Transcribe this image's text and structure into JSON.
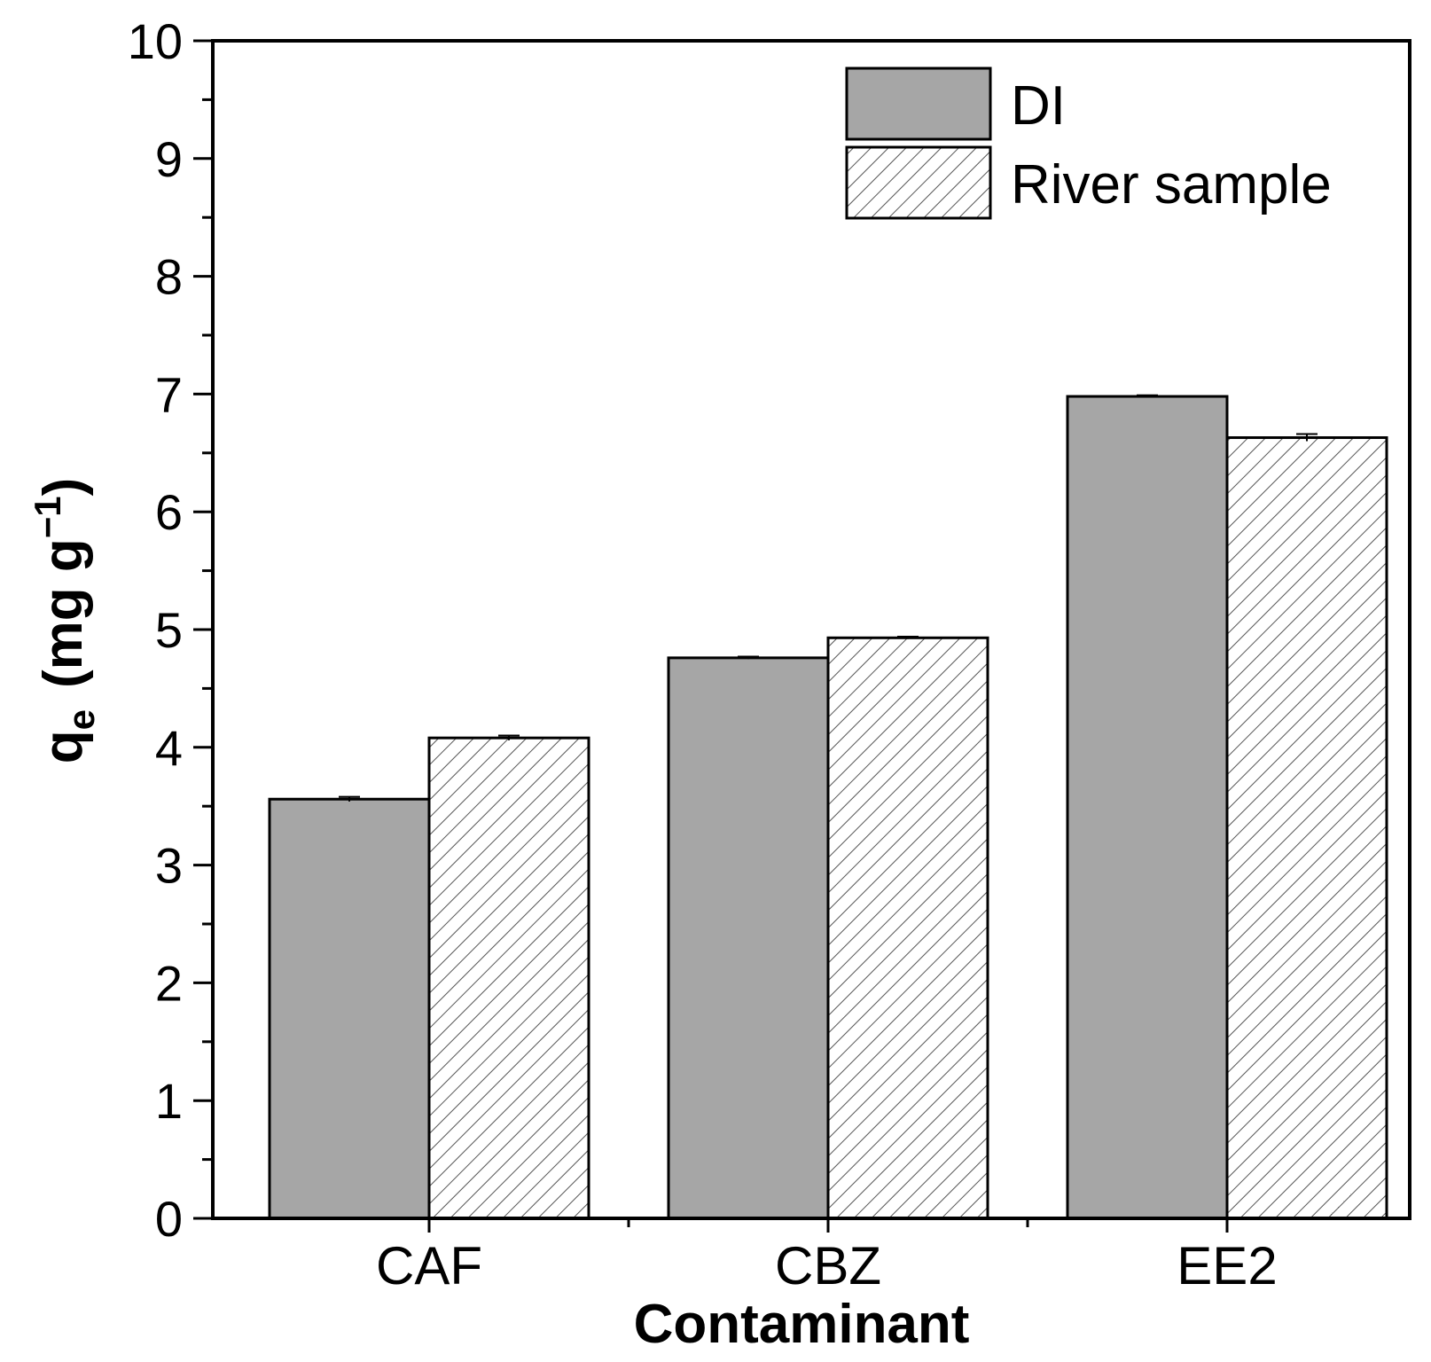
{
  "chart_data": {
    "type": "bar",
    "title": "",
    "xlabel": "Contaminant",
    "ylabel_main": "q",
    "ylabel_sub": "e",
    "ylabel_units_pre": "(mg g",
    "ylabel_units_sup": "−1",
    "ylabel_units_post": ")",
    "categories": [
      "CAF",
      "CBZ",
      "EE2"
    ],
    "ylim": [
      0,
      10
    ],
    "yticks": [
      "0",
      "1",
      "2",
      "3",
      "4",
      "5",
      "6",
      "7",
      "8",
      "9",
      "10"
    ],
    "legend_position": "top-right",
    "series": [
      {
        "name": "DI",
        "pattern": "solid",
        "values": [
          3.56,
          4.76,
          6.98
        ],
        "errors": [
          0.02,
          0.01,
          0.01
        ]
      },
      {
        "name": "River sample",
        "pattern": "hatch",
        "values": [
          4.08,
          4.93,
          6.63
        ],
        "errors": [
          0.02,
          0.01,
          0.03
        ]
      }
    ],
    "colors": {
      "di_fill": "#a6a6a6",
      "hatch_line": "#555555",
      "axis": "#000000"
    }
  }
}
